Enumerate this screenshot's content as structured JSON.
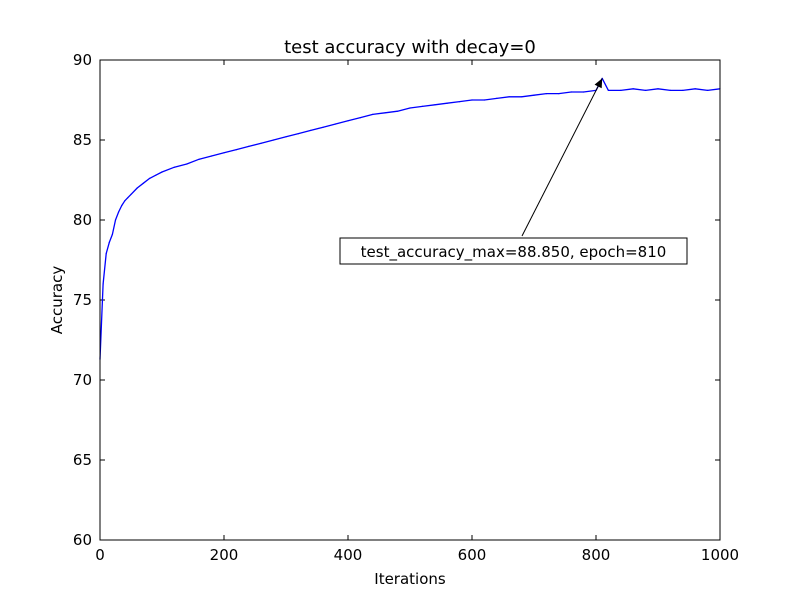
{
  "chart_data": {
    "type": "line",
    "title": "test accuracy with decay=0",
    "xlabel": "Iterations",
    "ylabel": "Accuracy",
    "xlim": [
      0,
      1000
    ],
    "ylim": [
      60,
      90
    ],
    "xticks": [
      0,
      200,
      400,
      600,
      800,
      1000
    ],
    "yticks": [
      60,
      65,
      70,
      75,
      80,
      85,
      90
    ],
    "xtick_labels": [
      "0",
      "200",
      "400",
      "600",
      "800",
      "1000"
    ],
    "ytick_labels": [
      "60",
      "65",
      "70",
      "75",
      "80",
      "85",
      "90"
    ],
    "grid": false,
    "legend": "none",
    "series": [
      {
        "color": "#0000ff",
        "x": [
          0,
          5,
          10,
          15,
          20,
          25,
          30,
          35,
          40,
          45,
          50,
          60,
          70,
          80,
          90,
          100,
          120,
          140,
          160,
          180,
          200,
          220,
          240,
          260,
          280,
          300,
          320,
          340,
          360,
          380,
          400,
          420,
          440,
          460,
          480,
          500,
          520,
          540,
          560,
          580,
          600,
          620,
          640,
          660,
          680,
          700,
          720,
          740,
          760,
          780,
          800,
          810,
          820,
          840,
          860,
          880,
          900,
          920,
          940,
          960,
          980,
          1000
        ],
        "y": [
          71.3,
          76.0,
          77.9,
          78.6,
          79.1,
          80.0,
          80.5,
          80.9,
          81.2,
          81.4,
          81.6,
          82.0,
          82.3,
          82.6,
          82.8,
          83.0,
          83.3,
          83.5,
          83.8,
          84.0,
          84.2,
          84.4,
          84.6,
          84.8,
          85.0,
          85.2,
          85.4,
          85.6,
          85.8,
          86.0,
          86.2,
          86.4,
          86.6,
          86.7,
          86.8,
          87.0,
          87.1,
          87.2,
          87.3,
          87.4,
          87.5,
          87.5,
          87.6,
          87.7,
          87.7,
          87.8,
          87.9,
          87.9,
          88.0,
          88.0,
          88.1,
          88.85,
          88.1,
          88.1,
          88.2,
          88.1,
          88.2,
          88.1,
          88.1,
          88.2,
          88.1,
          88.2
        ]
      }
    ],
    "annotation": {
      "text": "test_accuracy_max=88.850, epoch=810",
      "point_x": 810,
      "point_y": 88.85
    }
  }
}
